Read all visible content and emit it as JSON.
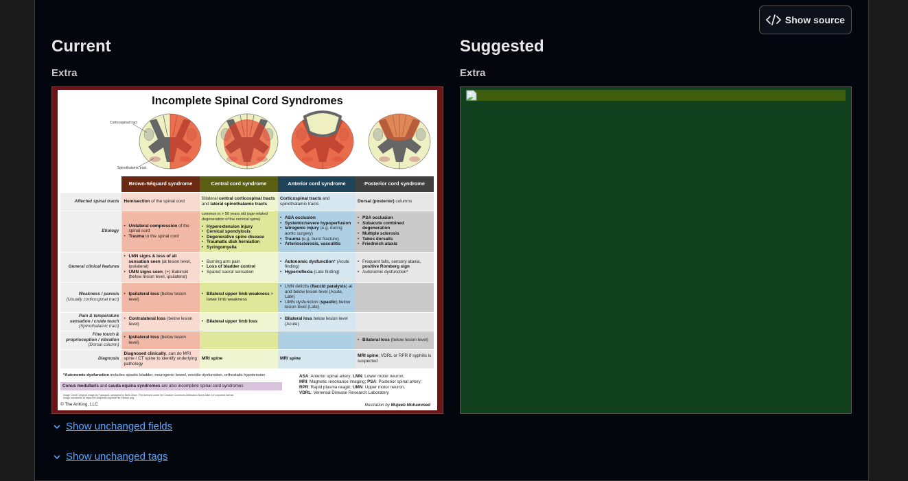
{
  "toolbar": {
    "show_source_label": "Show source",
    "show_source_icon": "code-icon"
  },
  "current": {
    "heading": "Current",
    "field_label": "Extra"
  },
  "suggested": {
    "heading": "Suggested",
    "field_label": "Extra",
    "image_icon": "broken-image-icon",
    "background": "#11401f"
  },
  "infographic": {
    "title": "Incomplete Spinal Cord Syndromes",
    "diagram_labels": {
      "corticospinal": "Corticospinal tract",
      "spinothalamic": "Spinothalamic tract"
    },
    "columns": [
      {
        "label": "Brown-Séquard syndrome",
        "color": "#6b2a14",
        "light": "#f9dad1",
        "dark": "#f1b8a5"
      },
      {
        "label": "Central cord syndrome",
        "color": "#5a5e12",
        "light": "#eef5d0",
        "dark": "#dfe79b"
      },
      {
        "label": "Anterior cord syndrome",
        "color": "#1f4358",
        "light": "#d6e7f0",
        "dark": "#afd0e4"
      },
      {
        "label": "Posterior cord syndrome",
        "color": "#404040",
        "light": "#e7e7e7",
        "dark": "#cacaca"
      }
    ],
    "rows": [
      {
        "label": "Affected spinal tracts",
        "sub": "",
        "shade": "light",
        "cells": [
          {
            "text": [
              {
                "b": "Hemisection"
              },
              " of the spinal cord"
            ]
          },
          {
            "text": [
              "Bilateral ",
              {
                "b": "central corticospinal tracts"
              },
              " and ",
              {
                "b": "lateral spinothalamic tracts"
              }
            ]
          },
          {
            "text": [
              {
                "b": "Corticospinal tracts"
              },
              " and spinothalamic tracts"
            ]
          },
          {
            "text": [
              {
                "b": "Dorsal (posterior)"
              },
              " columns"
            ]
          }
        ]
      },
      {
        "label": "Etiology",
        "sub": "",
        "shade": "dark",
        "cells": [
          {
            "bullets": [
              [
                {
                  "b": "Unilateral compression"
                },
                " of the spinal cord"
              ],
              [
                {
                  "b": "Trauma"
                },
                " to the spinal cord"
              ]
            ]
          },
          {
            "text": [
              "common in > 50 years old (age-related degeneration of the cervical spine)"
            ],
            "bullets": [
              [
                {
                  "b": "Hyperextension injury"
                }
              ],
              [
                {
                  "b": "Cervical spondylosis"
                }
              ],
              [
                {
                  "b": "Degenerative spine disease"
                }
              ],
              [
                {
                  "b": "Traumatic disk herniation"
                }
              ],
              [
                {
                  "b": "Syringomyelia"
                }
              ]
            ]
          },
          {
            "bullets": [
              [
                {
                  "b": "ASA occlusion"
                }
              ],
              [
                {
                  "b": "Systemic/severe hypoperfusion"
                }
              ],
              [
                {
                  "b": "Iatrogenic injury"
                },
                " (e.g. during aortic surgery)"
              ],
              [
                {
                  "b": "Trauma"
                },
                " (e.g. burst fracture)"
              ],
              [
                {
                  "b": "Arteriosclerosis, vasculitis"
                }
              ]
            ]
          },
          {
            "bullets": [
              [
                {
                  "b": "PSA occlusion"
                }
              ],
              [
                {
                  "b": "Subacute combined degeneration"
                }
              ],
              [
                {
                  "b": "Multiple sclerosis"
                }
              ],
              [
                {
                  "b": "Tabes dorsalis"
                }
              ],
              [
                {
                  "b": "Friedreich ataxia"
                }
              ]
            ]
          }
        ]
      },
      {
        "label": "General clinical features",
        "sub": "",
        "shade": "light",
        "cells": [
          {
            "bullets": [
              [
                {
                  "b": "LMN signs & loss of all sensation seen"
                },
                " (at lesion level, ipsilateral)"
              ],
              [
                {
                  "b": "UMN signs seen"
                },
                "; (+) Babinski (below lesion level, ipsilateral)"
              ]
            ]
          },
          {
            "bullets": [
              [
                "Burning arm pain"
              ],
              [
                {
                  "b": "Loss of bladder control"
                }
              ],
              [
                "Spared sacral sensation"
              ]
            ]
          },
          {
            "bullets": [
              [
                {
                  "b": "Autonomic dysfunction"
                },
                "* (Acute finding)"
              ],
              [
                {
                  "b": "Hyperreflexia"
                },
                " (Late finding)"
              ]
            ]
          },
          {
            "bullets": [
              [
                "Frequent falls, sensory ataxia, ",
                {
                  "b": "positive Romberg sign"
                }
              ],
              [
                "Autonomic dysfunction*"
              ]
            ]
          }
        ]
      },
      {
        "label": "Weakness / paresis",
        "sub": "(Usually corticospinal tract)",
        "shade": "dark",
        "cells": [
          {
            "bullets": [
              [
                {
                  "b": "Ipsilateral loss"
                },
                " (below lesion level)"
              ]
            ]
          },
          {
            "bullets": [
              [
                {
                  "b": "Bilateral upper limb weakness"
                },
                " > lower limb weakness"
              ]
            ]
          },
          {
            "bullets": [
              [
                "LMN deficits (",
                {
                  "b": "flaccid paralysis"
                },
                ") at and below lesion level (Acute, Late)"
              ],
              [
                "UMN dysfunction (",
                {
                  "b": "spastic"
                },
                ") below lesion level (Late)"
              ]
            ]
          },
          {}
        ]
      },
      {
        "label": "Pain & temperature sensation / crude touch",
        "sub": "(Spinothalamic tract)",
        "shade": "light",
        "cells": [
          {
            "bullets": [
              [
                {
                  "b": "Contralateral loss"
                },
                " (below lesion level)"
              ]
            ]
          },
          {
            "bullets": [
              [
                {
                  "b": "Bilateral upper limb loss"
                }
              ]
            ]
          },
          {
            "bullets": [
              [
                {
                  "b": "Bilateral loss"
                },
                " below lesion level (Acute)"
              ]
            ]
          },
          {}
        ]
      },
      {
        "label": "Fine touch & proprioception / vibration",
        "sub": "(Dorsal column)",
        "shade": "dark",
        "cells": [
          {
            "bullets": [
              [
                {
                  "b": "Ipsilateral loss"
                },
                " (below lesion level)"
              ]
            ]
          },
          {},
          {},
          {
            "bullets": [
              [
                {
                  "b": "Bilateral loss"
                },
                " (below lesion level)"
              ]
            ]
          }
        ]
      },
      {
        "label": "Diagnosis",
        "sub": "",
        "shade": "light",
        "cells": [
          {
            "text": [
              {
                "b": "Diagnosed clinically"
              },
              ", can do MRI spine / CT spine to identify underlying pathology"
            ]
          },
          {
            "text": [
              {
                "b": "MRI spine"
              }
            ]
          },
          {
            "text": [
              {
                "b": "MRI spine"
              }
            ]
          },
          {
            "text": [
              {
                "b": "MRI spine"
              },
              "; VDRL or RPR if syphilis is suspected"
            ]
          }
        ]
      }
    ],
    "footnote": [
      {
        "b": "*Autonomic dysfunction"
      },
      " includes spastic bladder, neurogenic bowel, erectile dysfunction, orthostatic hypotension"
    ],
    "callout": [
      {
        "b": "Conus medullaris"
      },
      " and ",
      {
        "b": "cauda equina syndromes"
      },
      " are also incomplete spinal cord syndromes"
    ],
    "legend": [
      [
        {
          "b": "ASA"
        },
        ": Anterior spinal artery; ",
        {
          "b": "LMN"
        },
        ": Lower motor neuron;"
      ],
      [
        {
          "b": "MRI"
        },
        ": Magnetic resonance imaging; ",
        {
          "b": "PSA"
        },
        ": Posterior spinal artery;"
      ],
      [
        {
          "b": "RPR"
        },
        ": Rapid plasma reagin; ",
        {
          "b": "UMN"
        },
        ": Upper motor neuron;"
      ],
      [
        {
          "b": "VDRL"
        },
        ": Venereal Disease Research Laboratory"
      ]
    ],
    "image_credit": "Image Credit: Original image by Fujosquid, uploaded by Niels Olson. File licensed under the Creative Commons Attribution-Share Alike 3.0 Unported license.",
    "image_credit_2": "Image accessible at https://en.wikipedia.org/wiki/File:Section.png",
    "copyright": "© The AnKing, LLC",
    "illustration_prefix": "Illustration by ",
    "illustrator": "Mujeeb Mohammed"
  },
  "links": {
    "unchanged_fields": "Show unchanged fields",
    "unchanged_tags": "Show unchanged tags",
    "link_color": "#58a6ff"
  }
}
